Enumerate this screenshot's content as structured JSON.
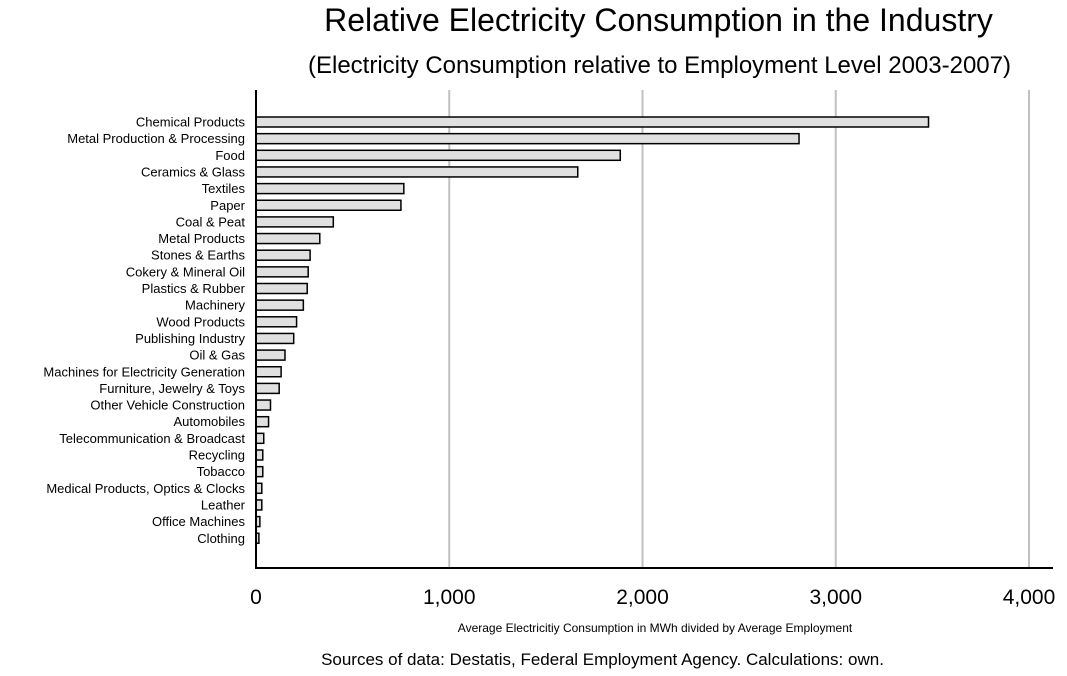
{
  "title": "Relative Electricity Consumption in the Industry",
  "subtitle": "(Electricity Consumption relative to Employment Level 2003-2007)",
  "footer": "Sources of data: Destatis, Federal Employment Agency. Calculations: own.",
  "colors": {
    "bar_fill": "#e0e0e0",
    "bar_stroke": "#000000",
    "grid": "#c0c0c0",
    "axis": "#000000"
  },
  "chart_data": {
    "type": "bar",
    "orientation": "horizontal",
    "title": "Relative Electricity Consumption in the Industry",
    "subtitle": "(Electricity Consumption relative to Employment Level 2003-2007)",
    "xlabel": "Average Electricitiy Consumption in MWh divided by Average Employment",
    "ylabel": "",
    "xlim": [
      0,
      4000
    ],
    "xticks": [
      0,
      1000,
      2000,
      3000,
      4000
    ],
    "xtick_labels": [
      "0",
      "1,000",
      "2,000",
      "3,000",
      "4,000"
    ],
    "grid": "vertical",
    "categories": [
      "Chemical Products",
      "Metal Production & Processing",
      "Food",
      "Ceramics & Glass",
      "Textiles",
      "Paper",
      "Coal & Peat",
      "Metal Products",
      "Stones & Earths",
      "Cokery & Mineral Oil",
      "Plastics & Rubber",
      "Machinery",
      "Wood Products",
      "Publishing Industry",
      "Oil & Gas",
      "Machines for Electricity Generation",
      "Furniture, Jewelry & Toys",
      "Other Vehicle Construction",
      "Automobiles",
      "Telecommunication & Broadcast",
      "Recycling",
      "Tobacco",
      "Medical Products, Optics & Clocks",
      "Leather",
      "Office Machines",
      "Clothing"
    ],
    "values": [
      3480,
      2810,
      1885,
      1665,
      765,
      750,
      400,
      330,
      280,
      270,
      265,
      245,
      210,
      195,
      150,
      130,
      120,
      75,
      65,
      40,
      35,
      35,
      30,
      30,
      20,
      15
    ]
  }
}
